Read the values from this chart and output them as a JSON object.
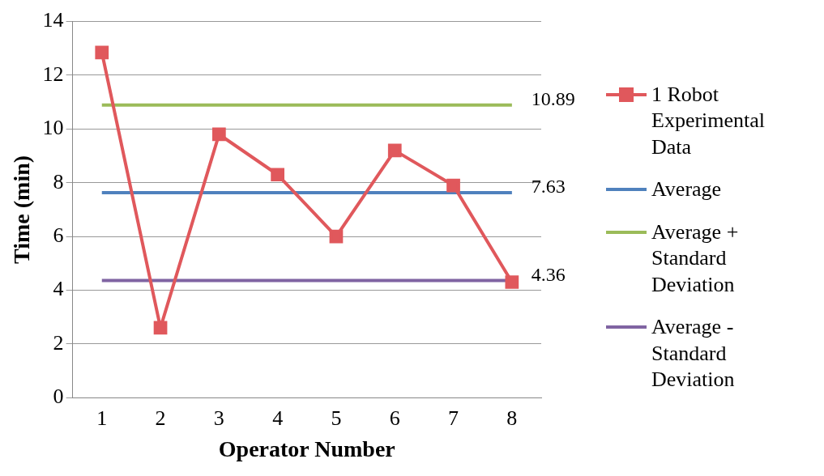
{
  "chart_data": {
    "type": "line",
    "xlabel": "Operator Number",
    "ylabel": "Time (min)",
    "categories": [
      "1",
      "2",
      "3",
      "4",
      "5",
      "6",
      "7",
      "8"
    ],
    "ylim": [
      0,
      14
    ],
    "yticks": [
      0,
      2,
      4,
      6,
      8,
      10,
      12,
      14
    ],
    "grid": "y",
    "legend": "right",
    "series": [
      {
        "name": "1 Robot Experimental Data",
        "color": "#e0585c",
        "marker": "square",
        "values": [
          12.85,
          2.6,
          9.8,
          8.3,
          6.0,
          9.2,
          7.9,
          4.3
        ]
      },
      {
        "name": "Average",
        "color": "#4f81bd",
        "marker": "none",
        "values": [
          7.63,
          7.63,
          7.63,
          7.63,
          7.63,
          7.63,
          7.63,
          7.63
        ],
        "value_labels": [
          null,
          null,
          null,
          null,
          null,
          null,
          null,
          "7.63"
        ]
      },
      {
        "name": "Average + Standard Deviation",
        "color": "#9bbb59",
        "marker": "none",
        "values": [
          10.89,
          10.89,
          10.89,
          10.89,
          10.89,
          10.89,
          10.89,
          10.89
        ],
        "value_labels": [
          null,
          null,
          null,
          null,
          null,
          null,
          null,
          "10.89"
        ]
      },
      {
        "name": "Average - Standard Deviation",
        "color": "#8064a2",
        "marker": "none",
        "values": [
          4.36,
          4.36,
          4.36,
          4.36,
          4.36,
          4.36,
          4.36,
          4.36
        ],
        "value_labels": [
          null,
          null,
          null,
          null,
          null,
          null,
          null,
          "4.36"
        ]
      }
    ]
  }
}
